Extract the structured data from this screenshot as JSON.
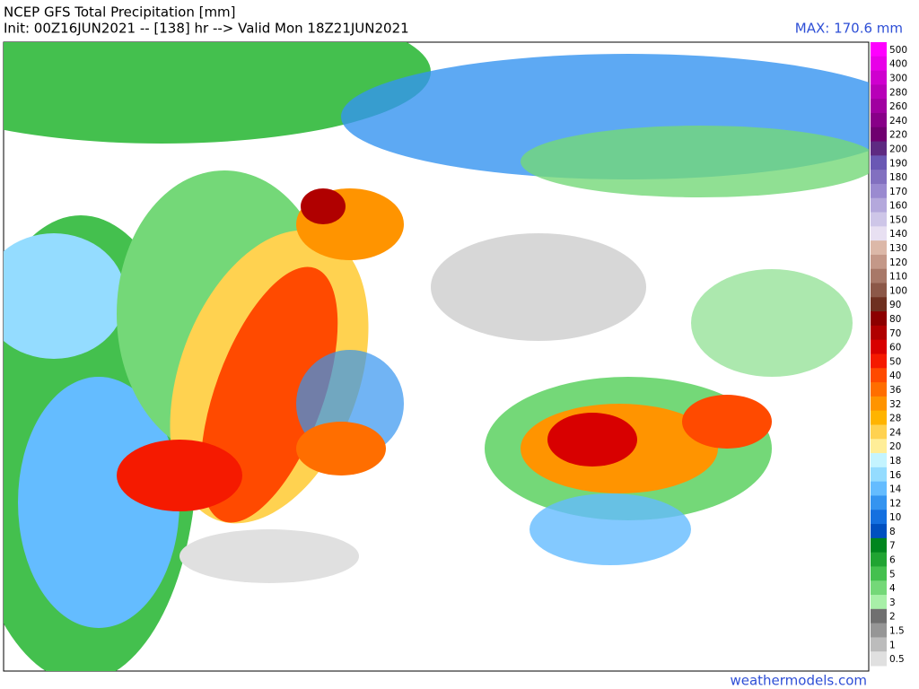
{
  "header": {
    "title": "NCEP GFS Total Precipitation [mm]",
    "init_line": "Init: 00Z16JUN2021 -- [138] hr --> Valid Mon 18Z21JUN2021",
    "max": "MAX: 170.6 mm"
  },
  "legend": [
    {
      "label": "500",
      "color": "#ff00ff"
    },
    {
      "label": "400",
      "color": "#e800e8"
    },
    {
      "label": "300",
      "color": "#cf00cf"
    },
    {
      "label": "280",
      "color": "#b800b8"
    },
    {
      "label": "260",
      "color": "#a000a0"
    },
    {
      "label": "240",
      "color": "#880088"
    },
    {
      "label": "220",
      "color": "#700070"
    },
    {
      "label": "200",
      "color": "#5e2a82"
    },
    {
      "label": "190",
      "color": "#6a58b4"
    },
    {
      "label": "180",
      "color": "#8270c0"
    },
    {
      "label": "170",
      "color": "#9a8ad0"
    },
    {
      "label": "160",
      "color": "#b4a8dc"
    },
    {
      "label": "150",
      "color": "#cec6e8"
    },
    {
      "label": "140",
      "color": "#e8e0f2"
    },
    {
      "label": "130",
      "color": "#dcb8a8"
    },
    {
      "label": "120",
      "color": "#c49888"
    },
    {
      "label": "110",
      "color": "#a87868"
    },
    {
      "label": "100",
      "color": "#8c5848"
    },
    {
      "label": "90",
      "color": "#6e3020"
    },
    {
      "label": "80",
      "color": "#8c0000"
    },
    {
      "label": "70",
      "color": "#b00000"
    },
    {
      "label": "60",
      "color": "#d80000"
    },
    {
      "label": "50",
      "color": "#f51a00"
    },
    {
      "label": "40",
      "color": "#ff4a00"
    },
    {
      "label": "36",
      "color": "#ff6e00"
    },
    {
      "label": "32",
      "color": "#ff9400"
    },
    {
      "label": "28",
      "color": "#ffb400"
    },
    {
      "label": "24",
      "color": "#ffd250"
    },
    {
      "label": "20",
      "color": "#ffee98"
    },
    {
      "label": "18",
      "color": "#c4f4ff"
    },
    {
      "label": "16",
      "color": "#94dcff"
    },
    {
      "label": "14",
      "color": "#64bcff"
    },
    {
      "label": "12",
      "color": "#3494f0"
    },
    {
      "label": "10",
      "color": "#1470e0"
    },
    {
      "label": "8",
      "color": "#0050c0"
    },
    {
      "label": "7",
      "color": "#00861e"
    },
    {
      "label": "6",
      "color": "#20a432"
    },
    {
      "label": "5",
      "color": "#44c04e"
    },
    {
      "label": "4",
      "color": "#74d878"
    },
    {
      "label": "3",
      "color": "#a8f0a8"
    },
    {
      "label": "2",
      "color": "#707070"
    },
    {
      "label": "1.5",
      "color": "#969696"
    },
    {
      "label": "1",
      "color": "#bcbcbc"
    },
    {
      "label": "0.5",
      "color": "#e0e0e0"
    }
  ],
  "credit": "weathermodels.com"
}
